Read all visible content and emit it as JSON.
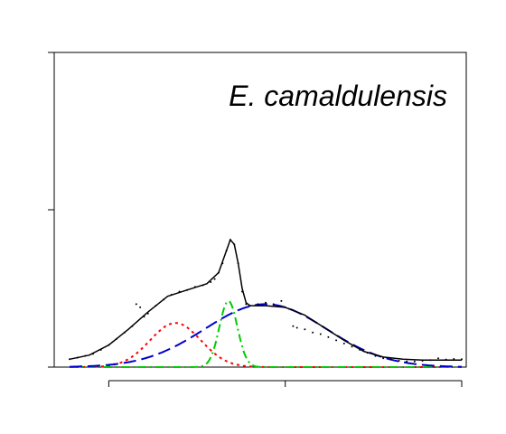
{
  "chart_data": {
    "type": "line",
    "title": "E. camaldulensis",
    "xlabel": "",
    "ylabel": "",
    "xlim": [
      0,
      100
    ],
    "ylim": [
      0,
      100
    ],
    "x_ticks": [
      10,
      55,
      100
    ],
    "y_ticks": [
      0,
      50,
      100
    ],
    "grid": false,
    "legend": "none",
    "components": [
      {
        "kind": "gaussian",
        "mu": 27,
        "sigma": 6.5,
        "amp": 14,
        "color": "#ff0000",
        "dash": "dotted"
      },
      {
        "kind": "gaussian",
        "mu": 40.5,
        "sigma": 2.3,
        "amp": 21,
        "color": "#00cc00",
        "dash": "dotdash"
      },
      {
        "kind": "gaussian",
        "mu": 50,
        "sigma": 15.5,
        "amp": 20,
        "color": "#0000cc",
        "dash": "longdash"
      }
    ],
    "fit": {
      "color": "#000000",
      "points": [
        [
          0,
          2.5
        ],
        [
          5,
          3.8
        ],
        [
          10,
          7
        ],
        [
          15,
          12
        ],
        [
          20,
          17.5
        ],
        [
          25,
          22.5
        ],
        [
          30,
          24.5
        ],
        [
          35,
          26.5
        ],
        [
          38,
          30
        ],
        [
          40,
          37
        ],
        [
          41,
          40.5
        ],
        [
          42,
          39
        ],
        [
          43,
          33
        ],
        [
          44,
          25
        ],
        [
          45,
          20.5
        ],
        [
          46,
          19.5
        ],
        [
          50,
          19.5
        ],
        [
          55,
          19
        ],
        [
          60,
          16.5
        ],
        [
          65,
          12.5
        ],
        [
          70,
          8.5
        ],
        [
          75,
          5
        ],
        [
          80,
          3.2
        ],
        [
          85,
          2.5
        ],
        [
          90,
          2.2
        ],
        [
          100,
          2.2
        ]
      ]
    },
    "observed": {
      "color": "#000000",
      "points": [
        [
          0,
          2.5
        ],
        [
          2,
          3
        ],
        [
          4,
          3.6
        ],
        [
          6,
          4.2
        ],
        [
          8,
          5.5
        ],
        [
          10,
          7
        ],
        [
          12,
          9
        ],
        [
          14,
          11
        ],
        [
          16,
          13
        ],
        [
          17,
          20
        ],
        [
          18,
          19
        ],
        [
          19,
          16
        ],
        [
          20,
          17
        ],
        [
          22,
          19.5
        ],
        [
          24,
          21.5
        ],
        [
          26,
          23
        ],
        [
          28,
          24
        ],
        [
          30,
          24.5
        ],
        [
          32,
          25.5
        ],
        [
          34,
          26
        ],
        [
          36,
          27
        ],
        [
          37,
          28
        ],
        [
          38,
          30
        ],
        [
          39,
          33
        ],
        [
          40,
          37
        ],
        [
          41,
          40.5
        ],
        [
          42,
          39
        ],
        [
          43,
          33
        ],
        [
          44,
          24
        ],
        [
          45,
          20
        ],
        [
          46,
          19.5
        ],
        [
          48,
          20
        ],
        [
          50,
          20.5
        ],
        [
          52,
          20
        ],
        [
          54,
          21
        ],
        [
          55,
          19
        ],
        [
          56,
          18.5
        ],
        [
          57,
          13
        ],
        [
          58,
          12.5
        ],
        [
          60,
          12
        ],
        [
          62,
          11
        ],
        [
          64,
          10.5
        ],
        [
          66,
          9.5
        ],
        [
          68,
          8.5
        ],
        [
          70,
          7.5
        ],
        [
          72,
          6.5
        ],
        [
          74,
          5.5
        ],
        [
          76,
          4.5
        ],
        [
          78,
          3.5
        ],
        [
          80,
          2.8
        ],
        [
          82,
          2.4
        ],
        [
          84,
          2
        ],
        [
          86,
          1.8
        ],
        [
          88,
          1.8
        ],
        [
          90,
          2
        ],
        [
          92,
          2.2
        ],
        [
          94,
          2.8
        ],
        [
          96,
          2.4
        ],
        [
          98,
          2.6
        ],
        [
          100,
          2.5
        ]
      ]
    }
  }
}
